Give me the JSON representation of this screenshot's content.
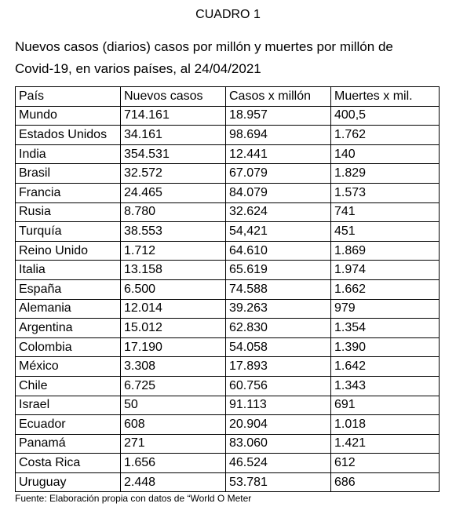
{
  "header": {
    "title": "CUADRO 1",
    "subtitle": "Nuevos casos (diarios) casos por millón y muertes por millón de Covid-19, en varios países, al 24/04/2021"
  },
  "table": {
    "columns": [
      "País",
      "Nuevos casos",
      "Casos x millón",
      "Muertes x mil."
    ],
    "rows": [
      [
        "Mundo",
        "714.161",
        "18.957",
        "400,5"
      ],
      [
        "Estados Unidos",
        "34.161",
        "98.694",
        "1.762"
      ],
      [
        "India",
        "354.531",
        "12.441",
        "140"
      ],
      [
        "Brasil",
        "32.572",
        "67.079",
        "1.829"
      ],
      [
        "Francia",
        "24.465",
        "84.079",
        "1.573"
      ],
      [
        "Rusia",
        "8.780",
        "32.624",
        "741"
      ],
      [
        "Turquía",
        "38.553",
        "54,421",
        "451"
      ],
      [
        "Reino Unido",
        "1.712",
        "64.610",
        "1.869"
      ],
      [
        "Italia",
        "13.158",
        "65.619",
        "1.974"
      ],
      [
        "España",
        "6.500",
        "74.588",
        "1.662"
      ],
      [
        "Alemania",
        "12.014",
        "39.263",
        "979"
      ],
      [
        "Argentina",
        "15.012",
        "62.830",
        "1.354"
      ],
      [
        "Colombia",
        "17.190",
        "54.058",
        "1.390"
      ],
      [
        "México",
        "3.308",
        "17.893",
        "1.642"
      ],
      [
        "Chile",
        "6.725",
        "60.756",
        "1.343"
      ],
      [
        "Israel",
        "50",
        "91.113",
        "691"
      ],
      [
        "Ecuador",
        "608",
        "20.904",
        "1.018"
      ],
      [
        "Panamá",
        "271",
        "83.060",
        "1.421"
      ],
      [
        "Costa Rica",
        "1.656",
        "46.524",
        "612"
      ],
      [
        "Uruguay",
        "2.448",
        "53.781",
        "686"
      ]
    ]
  },
  "footer": "Fuente: Elaboración propia con datos de “World O Meter"
}
